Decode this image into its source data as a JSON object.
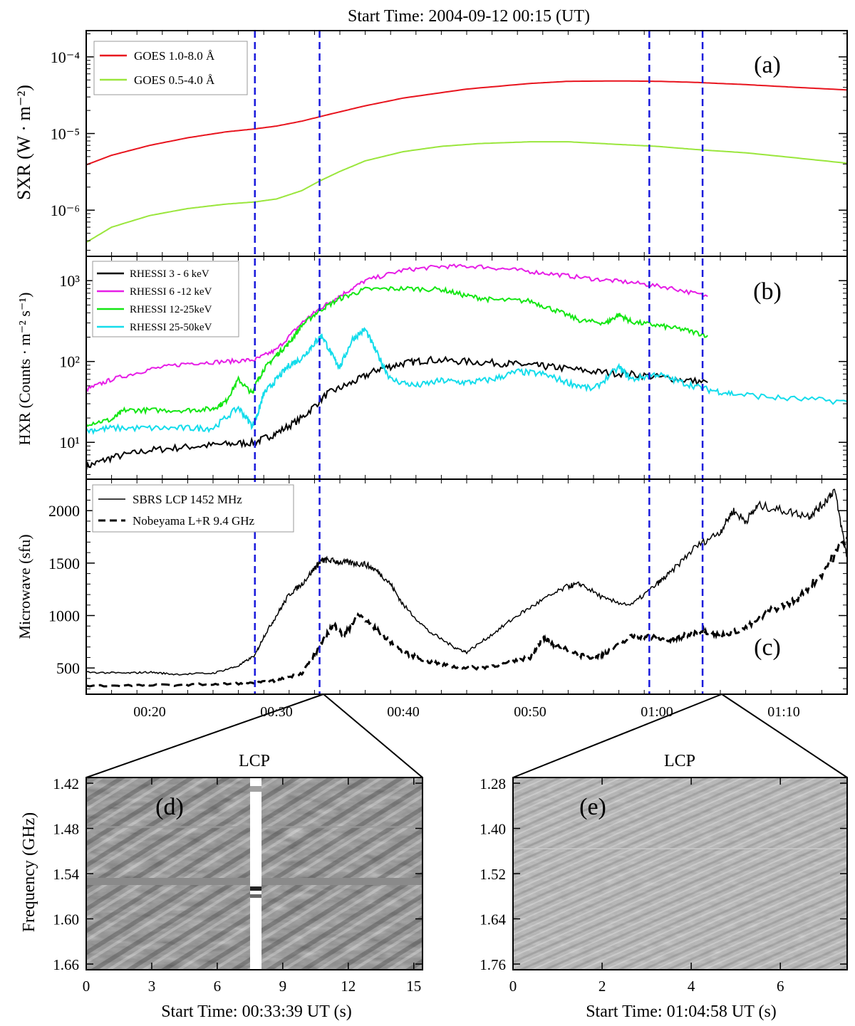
{
  "figure_title": "Start Time:  2004-09-12  00:15 (UT)",
  "time_axis": {
    "range_min": [
      15,
      75
    ],
    "ticks": [
      20,
      30,
      40,
      50,
      60,
      70
    ],
    "tick_labels": [
      "00:20",
      "00:30",
      "00:40",
      "00:50",
      "01:00",
      "01:10"
    ],
    "marker_lines_min": [
      28.3,
      33.4,
      59.4,
      63.6
    ],
    "marker_color": "#1a1adc"
  },
  "chart_data": [
    {
      "type": "line",
      "panel_label": "(a)",
      "ylabel": "SXR  (W · m⁻²)",
      "yscale": "log",
      "ylim": [
        2.5e-07,
        0.00022
      ],
      "ytick_labels": [
        "10⁻⁴",
        "10⁻⁵",
        "10⁻⁶"
      ],
      "ytick_values": [
        0.0001,
        1e-05,
        1e-06
      ],
      "series": [
        {
          "name": "GOES 1.0-8.0 Å",
          "color": "#e8141e",
          "x": [
            15,
            17,
            20,
            23,
            26,
            28.3,
            30,
            32,
            34,
            37,
            40,
            45,
            50,
            53,
            57,
            60,
            63,
            67,
            71,
            75
          ],
          "y": [
            3.9e-06,
            5.2e-06,
            7e-06,
            8.8e-06,
            1.05e-05,
            1.15e-05,
            1.25e-05,
            1.45e-05,
            1.75e-05,
            2.3e-05,
            2.9e-05,
            3.8e-05,
            4.5e-05,
            4.8e-05,
            4.85e-05,
            4.8e-05,
            4.65e-05,
            4.35e-05,
            4e-05,
            3.7e-05
          ]
        },
        {
          "name": "GOES 0.5-4.0 Å",
          "color": "#9ae63c",
          "x": [
            15,
            17,
            20,
            23,
            26,
            28.3,
            30,
            32,
            33.4,
            35,
            37,
            40,
            43,
            46,
            50,
            53,
            57,
            60,
            63,
            67,
            71,
            75
          ],
          "y": [
            3.8e-07,
            6e-07,
            8.5e-07,
            1.05e-06,
            1.2e-06,
            1.28e-06,
            1.4e-06,
            1.8e-06,
            2.4e-06,
            3.2e-06,
            4.4e-06,
            5.8e-06,
            6.8e-06,
            7.4e-06,
            7.8e-06,
            7.8e-06,
            7.2e-06,
            6.8e-06,
            6.2e-06,
            5.6e-06,
            4.8e-06,
            4.1e-06
          ]
        }
      ]
    },
    {
      "type": "line",
      "panel_label": "(b)",
      "ylabel": "HXR (Counts · m⁻² s⁻¹)",
      "yscale": "log",
      "ylim": [
        3.5,
        2000
      ],
      "ytick_labels": [
        "10³",
        "10²",
        "10¹"
      ],
      "ytick_values": [
        1000,
        100,
        10
      ],
      "series": [
        {
          "name": "RHESSI 3 - 6  keV",
          "color": "#000000",
          "x": [
            15,
            17,
            20,
            23,
            26,
            28.3,
            30,
            32,
            34,
            36,
            38,
            40,
            42,
            45,
            48,
            50,
            52,
            55,
            58,
            61,
            64
          ],
          "y": [
            5,
            6.5,
            8,
            8.8,
            9.5,
            10,
            13,
            20,
            40,
            55,
            80,
            95,
            105,
            100,
            95,
            90,
            85,
            75,
            70,
            62,
            55
          ]
        },
        {
          "name": "RHESSI 6 -12 keV",
          "color": "#e61ee6",
          "x": [
            15,
            17,
            20,
            23,
            26,
            28.3,
            30,
            32,
            33.4,
            35,
            37,
            40,
            43,
            46,
            49,
            52,
            55,
            58,
            61,
            64
          ],
          "y": [
            45,
            60,
            80,
            95,
            100,
            105,
            140,
            300,
            450,
            650,
            1000,
            1350,
            1500,
            1500,
            1350,
            1200,
            1050,
            950,
            820,
            640
          ]
        },
        {
          "name": "RHESSI 12-25keV",
          "color": "#14e614",
          "x": [
            15,
            17,
            18,
            20,
            23,
            25,
            26,
            27,
            28.1,
            28.3,
            29,
            30,
            31,
            32,
            33.4,
            35,
            37,
            40,
            43,
            45,
            47,
            50,
            52,
            54,
            56,
            57,
            58,
            60,
            62,
            64
          ],
          "y": [
            17,
            19,
            25,
            25,
            25,
            26,
            32,
            60,
            40,
            50,
            80,
            120,
            170,
            280,
            430,
            600,
            780,
            800,
            780,
            650,
            580,
            560,
            430,
            320,
            300,
            380,
            310,
            280,
            250,
            210
          ]
        },
        {
          "name": "RHESSI 25-50keV",
          "color": "#14dceb",
          "x": [
            15,
            17,
            20,
            23,
            25,
            27,
            28.1,
            28.5,
            29,
            30,
            31,
            32,
            33,
            33.6,
            34.5,
            35,
            36,
            37,
            38,
            39,
            41,
            43,
            45,
            47,
            49,
            51,
            53,
            55,
            57,
            58,
            60,
            62,
            64,
            66,
            70,
            75
          ],
          "y": [
            14,
            15,
            15,
            15,
            15,
            27,
            16,
            22,
            40,
            60,
            90,
            110,
            170,
            210,
            110,
            85,
            190,
            250,
            120,
            60,
            50,
            58,
            55,
            60,
            75,
            70,
            55,
            45,
            85,
            60,
            70,
            55,
            45,
            40,
            35,
            32
          ]
        }
      ]
    },
    {
      "type": "line",
      "panel_label": "(c)",
      "ylabel": "Microwave (sfu)",
      "yscale": "linear",
      "ylim": [
        250,
        2300
      ],
      "ytick_labels": [
        "2000",
        "1500",
        "1000",
        "500"
      ],
      "ytick_values": [
        2000,
        1500,
        1000,
        500
      ],
      "series": [
        {
          "name": "SBRS LCP 1452 MHz",
          "color": "#000000",
          "style": "solid",
          "x": [
            15,
            18,
            20,
            22,
            25,
            27,
            28.3,
            29,
            30,
            31,
            32,
            33,
            33.5,
            34,
            35,
            36,
            37,
            38,
            39,
            40,
            42,
            44,
            45,
            47,
            49,
            51,
            53,
            54,
            56,
            58,
            60,
            61,
            63,
            65,
            66,
            67,
            68,
            70,
            72,
            73,
            74,
            75
          ],
          "y": [
            460,
            450,
            460,
            440,
            450,
            520,
            620,
            800,
            1000,
            1200,
            1300,
            1450,
            1520,
            1530,
            1510,
            1500,
            1490,
            1420,
            1300,
            1100,
            850,
            700,
            650,
            820,
            1000,
            1150,
            1280,
            1300,
            1150,
            1100,
            1300,
            1400,
            1650,
            1800,
            2000,
            1900,
            2050,
            2000,
            1950,
            2050,
            2200,
            1550
          ]
        },
        {
          "name": "Nobeyama L+R 9.4 GHz",
          "color": "#000000",
          "style": "dashed",
          "x": [
            15,
            20,
            25,
            28.3,
            30,
            32,
            33.4,
            34.5,
            35.3,
            36.5,
            38,
            40,
            42,
            44,
            46,
            48,
            50,
            51,
            52,
            54,
            55,
            56,
            58,
            59.4,
            61,
            62,
            63.5,
            65,
            67,
            69,
            71,
            73,
            75
          ],
          "y": [
            330,
            335,
            345,
            355,
            380,
            450,
            700,
            920,
            800,
            1010,
            850,
            650,
            560,
            510,
            500,
            540,
            600,
            780,
            720,
            620,
            600,
            640,
            800,
            800,
            760,
            800,
            860,
            810,
            880,
            1050,
            1150,
            1400,
            1750
          ]
        }
      ]
    }
  ],
  "spectrograms": [
    {
      "panel_label": "(d)",
      "title": "LCP",
      "ylabel": "Frequency (GHz)",
      "ytick_labels": [
        "1.42",
        "1.48",
        "1.54",
        "1.60",
        "1.66"
      ],
      "xtick_labels": [
        "0",
        "3",
        "6",
        "9",
        "12",
        "15"
      ],
      "xlabel": "Start Time: 00:33:39 UT (s)"
    },
    {
      "panel_label": "(e)",
      "title": "LCP",
      "ytick_labels": [
        "1.28",
        "1.40",
        "1.52",
        "1.64",
        "1.76"
      ],
      "xtick_labels": [
        "0",
        "2",
        "4",
        "6"
      ],
      "xlabel": "Start Time: 01:04:58 UT (s)"
    }
  ]
}
